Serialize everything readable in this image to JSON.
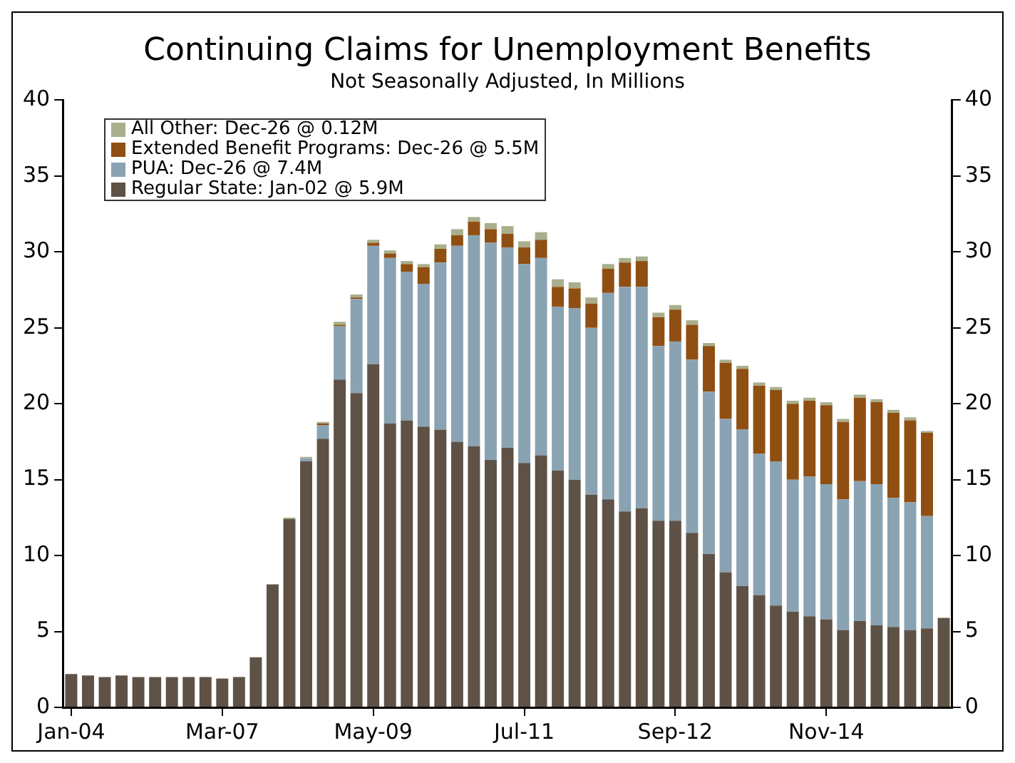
{
  "chart_data": {
    "type": "bar",
    "title": "Continuing Claims for Unemployment Benefits",
    "subtitle": "Not Seasonally Adjusted, In Millions",
    "stacked": true,
    "categories": [
      "Jan-04",
      null,
      null,
      null,
      null,
      null,
      null,
      null,
      null,
      "Mar-07",
      null,
      null,
      null,
      null,
      null,
      null,
      null,
      null,
      "May-09",
      null,
      null,
      null,
      null,
      null,
      null,
      null,
      null,
      "Jul-11",
      null,
      null,
      null,
      null,
      null,
      null,
      null,
      null,
      "Sep-12",
      null,
      null,
      null,
      null,
      null,
      null,
      null,
      null,
      "Nov-14",
      null,
      null,
      null,
      null,
      null,
      null,
      null
    ],
    "series": [
      {
        "name": "Regular State: Jan-02 @ 5.9M",
        "color": "#5e5246",
        "values": [
          2.2,
          2.1,
          2.0,
          2.1,
          2.0,
          2.0,
          2.0,
          2.0,
          2.0,
          1.9,
          2.0,
          3.3,
          8.1,
          12.4,
          16.2,
          17.7,
          21.6,
          20.7,
          22.6,
          18.7,
          18.9,
          18.5,
          18.3,
          17.5,
          17.2,
          16.3,
          17.1,
          16.1,
          16.6,
          15.6,
          15.0,
          14.0,
          13.7,
          12.9,
          13.1,
          12.3,
          12.3,
          11.5,
          10.1,
          8.9,
          8.0,
          7.4,
          6.7,
          6.3,
          6.0,
          5.8,
          5.1,
          5.7,
          5.4,
          5.3,
          5.1,
          5.2,
          5.9
        ]
      },
      {
        "name": "PUA: Dec-26 @ 7.4M",
        "color": "#8aa3b3",
        "values": [
          null,
          null,
          null,
          null,
          null,
          null,
          null,
          null,
          null,
          null,
          null,
          null,
          null,
          null,
          0.2,
          0.9,
          3.5,
          6.2,
          7.8,
          10.9,
          9.8,
          9.4,
          11.0,
          12.9,
          13.9,
          14.3,
          13.2,
          13.1,
          13.0,
          10.8,
          11.3,
          11.0,
          13.6,
          14.8,
          14.6,
          11.5,
          11.8,
          11.4,
          10.7,
          10.1,
          10.3,
          9.3,
          9.5,
          8.7,
          9.2,
          8.9,
          8.6,
          9.2,
          9.3,
          8.5,
          8.4,
          7.4,
          null
        ]
      },
      {
        "name": "Extended Benefit Programs: Dec-26 @ 5.5M",
        "color": "#8f4f12",
        "values": [
          null,
          null,
          null,
          null,
          null,
          null,
          null,
          null,
          null,
          null,
          null,
          null,
          null,
          null,
          null,
          0.1,
          0.1,
          0.1,
          0.2,
          0.3,
          0.5,
          1.1,
          0.9,
          0.7,
          0.9,
          0.9,
          0.9,
          1.1,
          1.2,
          1.3,
          1.3,
          1.6,
          1.6,
          1.6,
          1.7,
          1.9,
          2.1,
          2.3,
          3.0,
          3.7,
          4.0,
          4.5,
          4.7,
          5.0,
          5.0,
          5.2,
          5.1,
          5.5,
          5.4,
          5.6,
          5.4,
          5.5,
          null
        ]
      },
      {
        "name": "All Other: Dec-26 @ 0.12M",
        "color": "#a9ae8c",
        "values": [
          null,
          null,
          null,
          null,
          null,
          null,
          null,
          null,
          null,
          null,
          null,
          null,
          null,
          0.1,
          0.1,
          0.1,
          0.2,
          0.2,
          0.2,
          0.2,
          0.2,
          0.2,
          0.3,
          0.4,
          0.3,
          0.4,
          0.5,
          0.4,
          0.5,
          0.5,
          0.4,
          0.4,
          0.3,
          0.3,
          0.3,
          0.3,
          0.3,
          0.3,
          0.2,
          0.2,
          0.2,
          0.2,
          0.2,
          0.2,
          0.2,
          0.2,
          0.2,
          0.2,
          0.2,
          0.2,
          0.2,
          0.1,
          null
        ]
      }
    ],
    "ylim": [
      0,
      40
    ],
    "yticks": [
      0,
      5,
      10,
      15,
      20,
      25,
      30,
      35,
      40
    ],
    "y2lim": [
      0,
      40
    ],
    "y2ticks": [
      0,
      5,
      10,
      15,
      20,
      25,
      30,
      35,
      40
    ],
    "grid": false,
    "legend": "top left"
  }
}
